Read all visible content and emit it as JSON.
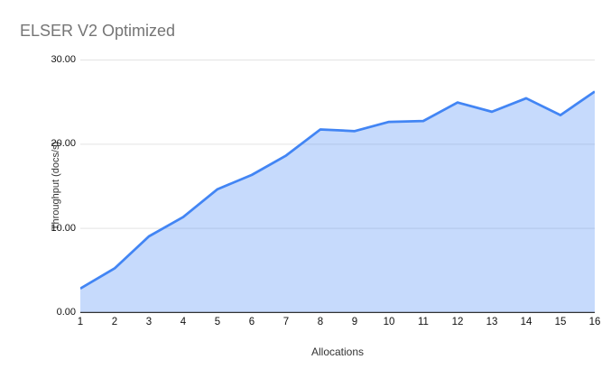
{
  "chart_data": {
    "type": "area",
    "title": "ELSER V2 Optimized",
    "xlabel": "Allocations",
    "ylabel": "Throughput (docs/s)",
    "categories": [
      "1",
      "2",
      "3",
      "4",
      "5",
      "6",
      "7",
      "8",
      "9",
      "10",
      "11",
      "12",
      "13",
      "14",
      "15",
      "16"
    ],
    "values": [
      2.8,
      5.2,
      9.0,
      11.3,
      14.6,
      16.3,
      18.6,
      21.7,
      21.5,
      22.6,
      22.7,
      24.9,
      23.8,
      25.4,
      23.4,
      26.2
    ],
    "series_name": "Throughput (docs/s)",
    "ylim": [
      0,
      30
    ],
    "y_tick_labels": [
      "30.00",
      "20.00",
      "10.00",
      "0.00"
    ],
    "y_tick_values": [
      30,
      20,
      10,
      0
    ],
    "grid": "horizontal",
    "legend": "none",
    "colors": {
      "line": "#4285F4",
      "fill": "rgba(66,133,244,0.30)",
      "gridline": "#E3E3E3",
      "axis_line": "#333333",
      "title_text": "#757575",
      "tick_text": "#111111"
    }
  }
}
